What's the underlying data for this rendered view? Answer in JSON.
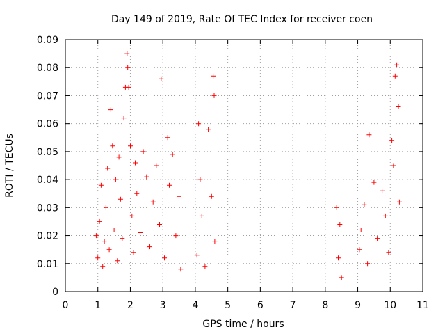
{
  "chart_data": {
    "type": "scatter",
    "title": "Day 149 of 2019, Rate Of TEC Index for receiver coen",
    "xlabel": "GPS time / hours",
    "ylabel": "ROTI / TECUs",
    "xlim": [
      0,
      11
    ],
    "ylim": [
      0,
      0.09
    ],
    "xticks": [
      "0",
      "1",
      "2",
      "3",
      "4",
      "5",
      "6",
      "7",
      "8",
      "9",
      "10",
      "11"
    ],
    "yticks": [
      "0",
      "0.01",
      "0.02",
      "0.03",
      "0.04",
      "0.05",
      "0.06",
      "0.07",
      "0.08",
      "0.09"
    ],
    "grid": true,
    "marker": "+",
    "color": "#ff0000",
    "series": [
      {
        "name": "ROTI",
        "points": [
          [
            0.95,
            0.02
          ],
          [
            1.0,
            0.012
          ],
          [
            1.05,
            0.025
          ],
          [
            1.1,
            0.038
          ],
          [
            1.15,
            0.009
          ],
          [
            1.2,
            0.018
          ],
          [
            1.25,
            0.03
          ],
          [
            1.3,
            0.044
          ],
          [
            1.35,
            0.015
          ],
          [
            1.4,
            0.065
          ],
          [
            1.45,
            0.052
          ],
          [
            1.5,
            0.022
          ],
          [
            1.55,
            0.04
          ],
          [
            1.6,
            0.011
          ],
          [
            1.65,
            0.048
          ],
          [
            1.7,
            0.033
          ],
          [
            1.75,
            0.019
          ],
          [
            1.8,
            0.062
          ],
          [
            1.85,
            0.073
          ],
          [
            1.9,
            0.085
          ],
          [
            1.92,
            0.08
          ],
          [
            1.95,
            0.073
          ],
          [
            2.0,
            0.052
          ],
          [
            2.05,
            0.027
          ],
          [
            2.1,
            0.014
          ],
          [
            2.15,
            0.046
          ],
          [
            2.2,
            0.035
          ],
          [
            2.3,
            0.021
          ],
          [
            2.4,
            0.05
          ],
          [
            2.5,
            0.041
          ],
          [
            2.6,
            0.016
          ],
          [
            2.7,
            0.032
          ],
          [
            2.8,
            0.045
          ],
          [
            2.9,
            0.024
          ],
          [
            2.95,
            0.076
          ],
          [
            3.05,
            0.012
          ],
          [
            3.15,
            0.055
          ],
          [
            3.2,
            0.038
          ],
          [
            3.3,
            0.049
          ],
          [
            3.4,
            0.02
          ],
          [
            3.5,
            0.034
          ],
          [
            3.55,
            0.008
          ],
          [
            4.05,
            0.013
          ],
          [
            4.1,
            0.06
          ],
          [
            4.15,
            0.04
          ],
          [
            4.2,
            0.027
          ],
          [
            4.3,
            0.009
          ],
          [
            4.4,
            0.058
          ],
          [
            4.5,
            0.034
          ],
          [
            4.55,
            0.077
          ],
          [
            4.58,
            0.07
          ],
          [
            4.6,
            0.018
          ],
          [
            8.35,
            0.03
          ],
          [
            8.4,
            0.012
          ],
          [
            8.45,
            0.024
          ],
          [
            8.5,
            0.005
          ],
          [
            9.05,
            0.015
          ],
          [
            9.1,
            0.022
          ],
          [
            9.2,
            0.031
          ],
          [
            9.3,
            0.01
          ],
          [
            9.35,
            0.056
          ],
          [
            9.5,
            0.039
          ],
          [
            9.6,
            0.019
          ],
          [
            9.75,
            0.036
          ],
          [
            9.85,
            0.027
          ],
          [
            9.95,
            0.014
          ],
          [
            10.05,
            0.054
          ],
          [
            10.1,
            0.045
          ],
          [
            10.15,
            0.077
          ],
          [
            10.2,
            0.081
          ],
          [
            10.25,
            0.066
          ],
          [
            10.28,
            0.032
          ]
        ]
      }
    ]
  }
}
